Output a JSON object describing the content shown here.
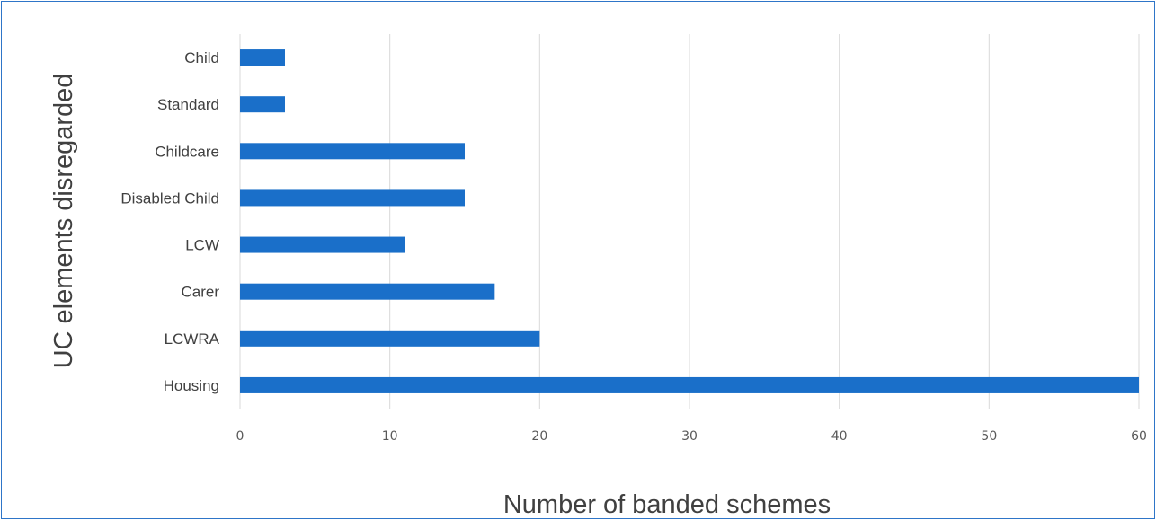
{
  "chart_data": {
    "type": "bar",
    "orientation": "horizontal",
    "categories": [
      "Housing",
      "LCWRA",
      "Carer",
      "LCW",
      "Disabled Child",
      "Childcare",
      "Standard",
      "Child"
    ],
    "values": [
      60,
      20,
      17,
      11,
      15,
      15,
      3,
      3
    ],
    "xlabel": "Number of banded schemes",
    "ylabel": "UC elements disregarded",
    "xlim": [
      0,
      60
    ],
    "xticks": [
      "0",
      "10",
      "20",
      "30",
      "40",
      "50",
      "60"
    ],
    "grid": "vertical",
    "legend": "none",
    "bar_color": "#1a6fc9",
    "grid_color": "#d9d9d9",
    "frame_color": "#2e75c8"
  }
}
